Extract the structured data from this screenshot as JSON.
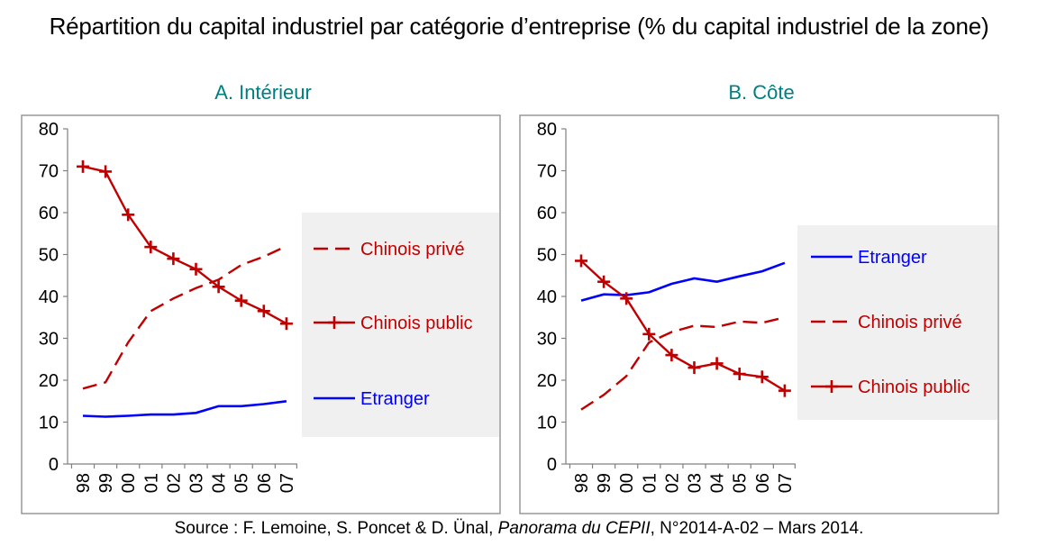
{
  "title": "Répartition du capital industriel par catégorie d’entreprise (% du capital industriel de la zone)",
  "source": {
    "prefix": "Source : F. Lemoine, S. Poncet & D. Ünal, ",
    "publication": "Panorama du CEPII",
    "suffix": ", N°2014-A-02 – Mars 2014."
  },
  "colors": {
    "chinois_prive": "#c00000",
    "chinois_public": "#c00000",
    "etranger": "#0000ff",
    "panel_title": "#007f7f",
    "legend_background": "#f0f0f0"
  },
  "chart_data": [
    {
      "type": "line",
      "title": "A. Intérieur",
      "categories": [
        "98",
        "99",
        "00",
        "01",
        "02",
        "03",
        "04",
        "05",
        "06",
        "07"
      ],
      "ylim": [
        0,
        80
      ],
      "yticks": [
        0,
        10,
        20,
        30,
        40,
        50,
        60,
        70,
        80
      ],
      "grid": false,
      "legend_position": "right",
      "series": [
        {
          "name": "Chinois privé",
          "style": "dashed",
          "color": "#c00000",
          "values": [
            18,
            19.5,
            29,
            36.5,
            39.5,
            42,
            44,
            47.5,
            49.5,
            52
          ]
        },
        {
          "name": "Chinois public",
          "style": "plus-marker",
          "color": "#c00000",
          "values": [
            71,
            69.8,
            59.5,
            51.8,
            49,
            46.5,
            42.3,
            39,
            36.5,
            33.5
          ]
        },
        {
          "name": "Etranger",
          "style": "solid",
          "color": "#0000ff",
          "values": [
            11.5,
            11.3,
            11.5,
            11.8,
            11.8,
            12.2,
            13.8,
            13.8,
            14.3,
            15
          ]
        }
      ]
    },
    {
      "type": "line",
      "title": "B. Côte",
      "categories": [
        "98",
        "99",
        "00",
        "01",
        "02",
        "03",
        "04",
        "05",
        "06",
        "07"
      ],
      "ylim": [
        0,
        80
      ],
      "yticks": [
        0,
        10,
        20,
        30,
        40,
        50,
        60,
        70,
        80
      ],
      "grid": false,
      "legend_position": "right",
      "series": [
        {
          "name": "Etranger",
          "style": "solid",
          "color": "#0000ff",
          "values": [
            39,
            40.5,
            40.3,
            41,
            43,
            44.3,
            43.5,
            44.8,
            46,
            48
          ]
        },
        {
          "name": "Chinois privé",
          "style": "dashed",
          "color": "#c00000",
          "values": [
            13,
            16.5,
            21,
            29,
            31.5,
            33,
            32.7,
            34,
            33.7,
            35
          ]
        },
        {
          "name": "Chinois public",
          "style": "plus-marker",
          "color": "#c00000",
          "values": [
            48.5,
            43.5,
            39.5,
            31,
            26,
            23,
            24,
            21.5,
            20.8,
            17.5
          ]
        }
      ]
    }
  ]
}
